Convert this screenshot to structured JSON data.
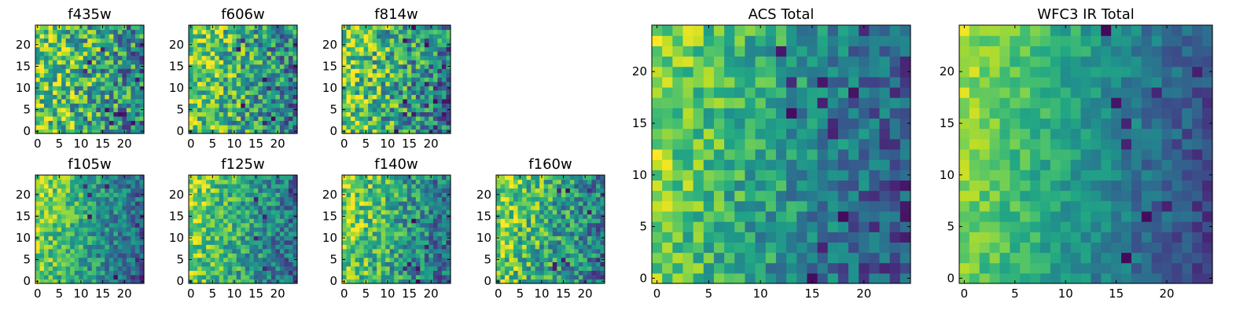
{
  "figure": {
    "background": "#ffffff"
  },
  "chart_data": [
    {
      "id": "f435w",
      "type": "heatmap",
      "title": "f435w",
      "grid_size": 25,
      "xlim": [
        -0.5,
        24.5
      ],
      "ylim": [
        -0.5,
        24.5
      ],
      "xticks": [
        0,
        5,
        10,
        15,
        20
      ],
      "xtick_labels": [
        "0",
        "5",
        "10",
        "15",
        "20"
      ],
      "yticks": [
        0,
        5,
        10,
        15,
        20
      ],
      "ytick_labels": [
        "0",
        "5",
        "10",
        "15",
        "20"
      ],
      "colormap": "viridis",
      "noise": 0.36,
      "gradient": 0.35,
      "seed": 11,
      "dark_spots": 10
    },
    {
      "id": "f606w",
      "type": "heatmap",
      "title": "f606w",
      "grid_size": 25,
      "xlim": [
        -0.5,
        24.5
      ],
      "ylim": [
        -0.5,
        24.5
      ],
      "xticks": [
        0,
        5,
        10,
        15,
        20
      ],
      "xtick_labels": [
        "0",
        "5",
        "10",
        "15",
        "20"
      ],
      "yticks": [
        0,
        5,
        10,
        15,
        20
      ],
      "ytick_labels": [
        "0",
        "5",
        "10",
        "15",
        "20"
      ],
      "colormap": "viridis",
      "noise": 0.32,
      "gradient": 0.38,
      "seed": 23,
      "dark_spots": 8
    },
    {
      "id": "f814w",
      "type": "heatmap",
      "title": "f814w",
      "grid_size": 25,
      "xlim": [
        -0.5,
        24.5
      ],
      "ylim": [
        -0.5,
        24.5
      ],
      "xticks": [
        0,
        5,
        10,
        15,
        20
      ],
      "xtick_labels": [
        "0",
        "5",
        "10",
        "15",
        "20"
      ],
      "yticks": [
        0,
        5,
        10,
        15,
        20
      ],
      "ytick_labels": [
        "0",
        "5",
        "10",
        "15",
        "20"
      ],
      "colormap": "viridis",
      "noise": 0.34,
      "gradient": 0.42,
      "seed": 37,
      "dark_spots": 12
    },
    {
      "id": "f105w",
      "type": "heatmap",
      "title": "f105w",
      "grid_size": 25,
      "xlim": [
        -0.5,
        24.5
      ],
      "ylim": [
        -0.5,
        24.5
      ],
      "xticks": [
        0,
        5,
        10,
        15,
        20
      ],
      "xtick_labels": [
        "0",
        "5",
        "10",
        "15",
        "20"
      ],
      "yticks": [
        0,
        5,
        10,
        15,
        20
      ],
      "ytick_labels": [
        "0",
        "5",
        "10",
        "15",
        "20"
      ],
      "colormap": "viridis",
      "noise": 0.22,
      "gradient": 0.5,
      "seed": 41,
      "dark_spots": 6
    },
    {
      "id": "f125w",
      "type": "heatmap",
      "title": "f125w",
      "grid_size": 25,
      "xlim": [
        -0.5,
        24.5
      ],
      "ylim": [
        -0.5,
        24.5
      ],
      "xticks": [
        0,
        5,
        10,
        15,
        20
      ],
      "xtick_labels": [
        "0",
        "5",
        "10",
        "15",
        "20"
      ],
      "yticks": [
        0,
        5,
        10,
        15,
        20
      ],
      "ytick_labels": [
        "0",
        "5",
        "10",
        "15",
        "20"
      ],
      "colormap": "viridis",
      "noise": 0.24,
      "gradient": 0.45,
      "seed": 53,
      "dark_spots": 5
    },
    {
      "id": "f140w",
      "type": "heatmap",
      "title": "f140w",
      "grid_size": 25,
      "xlim": [
        -0.5,
        24.5
      ],
      "ylim": [
        -0.5,
        24.5
      ],
      "xticks": [
        0,
        5,
        10,
        15,
        20
      ],
      "xtick_labels": [
        "0",
        "5",
        "10",
        "15",
        "20"
      ],
      "yticks": [
        0,
        5,
        10,
        15,
        20
      ],
      "ytick_labels": [
        "0",
        "5",
        "10",
        "15",
        "20"
      ],
      "colormap": "viridis",
      "noise": 0.26,
      "gradient": 0.45,
      "seed": 67,
      "dark_spots": 6
    },
    {
      "id": "f160w",
      "type": "heatmap",
      "title": "f160w",
      "grid_size": 25,
      "xlim": [
        -0.5,
        24.5
      ],
      "ylim": [
        -0.5,
        24.5
      ],
      "xticks": [
        0,
        5,
        10,
        15,
        20
      ],
      "xtick_labels": [
        "0",
        "5",
        "10",
        "15",
        "20"
      ],
      "yticks": [
        0,
        5,
        10,
        15,
        20
      ],
      "ytick_labels": [
        "0",
        "5",
        "10",
        "15",
        "20"
      ],
      "colormap": "viridis",
      "noise": 0.28,
      "gradient": 0.42,
      "seed": 79,
      "dark_spots": 8
    },
    {
      "id": "acs-total",
      "type": "heatmap",
      "title": "ACS Total",
      "grid_size": 25,
      "xlim": [
        -0.5,
        24.5
      ],
      "ylim": [
        -0.5,
        24.5
      ],
      "xticks": [
        0,
        5,
        10,
        15,
        20
      ],
      "xtick_labels": [
        "0",
        "5",
        "10",
        "15",
        "20"
      ],
      "yticks": [
        0,
        5,
        10,
        15,
        20
      ],
      "ytick_labels": [
        "0",
        "5",
        "10",
        "15",
        "20"
      ],
      "colormap": "viridis",
      "noise": 0.2,
      "gradient": 0.55,
      "seed": 89,
      "dark_spots": 14
    },
    {
      "id": "wfc3-ir-total",
      "type": "heatmap",
      "title": "WFC3 IR Total",
      "grid_size": 25,
      "xlim": [
        -0.5,
        24.5
      ],
      "ylim": [
        -0.5,
        24.5
      ],
      "xticks": [
        0,
        5,
        10,
        15,
        20
      ],
      "xtick_labels": [
        "0",
        "5",
        "10",
        "15",
        "20"
      ],
      "yticks": [
        0,
        5,
        10,
        15,
        20
      ],
      "ytick_labels": [
        "0",
        "5",
        "10",
        "15",
        "20"
      ],
      "colormap": "viridis",
      "noise": 0.12,
      "gradient": 0.6,
      "seed": 97,
      "dark_spots": 9
    }
  ]
}
